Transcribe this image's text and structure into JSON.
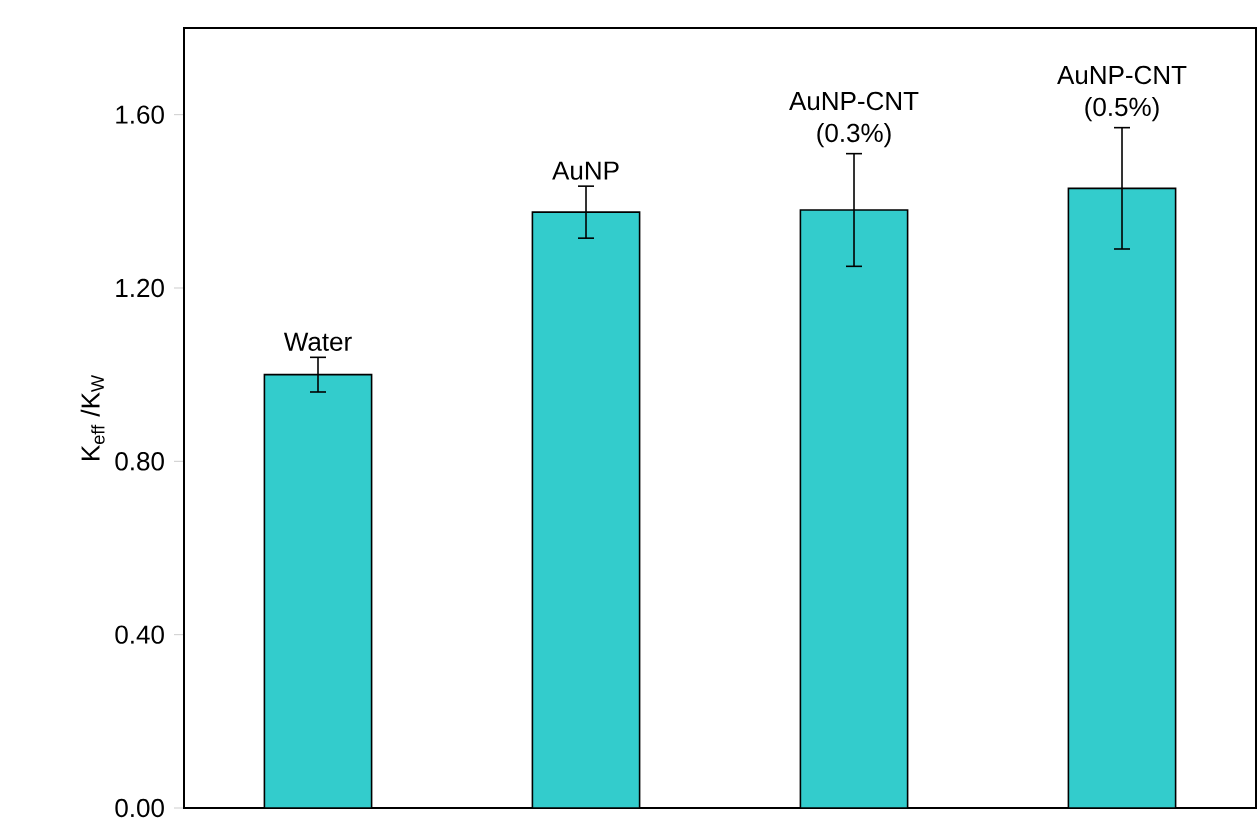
{
  "chart_data": {
    "type": "bar",
    "ylabel": "K$_{eff}$ /K$_{W}$",
    "categories": [
      "Water",
      "AuNP",
      "AuNP-CNT (0.3%)",
      "AuNP-CNT (0.5%)"
    ],
    "values": [
      1.0,
      1.375,
      1.38,
      1.43
    ],
    "errors": [
      0.04,
      0.06,
      0.13,
      0.14
    ],
    "color": "#33cccc",
    "ylim": [
      0,
      1.8
    ],
    "yticks": [
      {
        "value": 0,
        "label": "0.00"
      },
      {
        "value": 0.4,
        "label": "0.40"
      },
      {
        "value": 0.8,
        "label": "0.80"
      },
      {
        "value": 1.2,
        "label": "1.20"
      },
      {
        "value": 1.6,
        "label": "1.60"
      }
    ],
    "grid": false
  }
}
